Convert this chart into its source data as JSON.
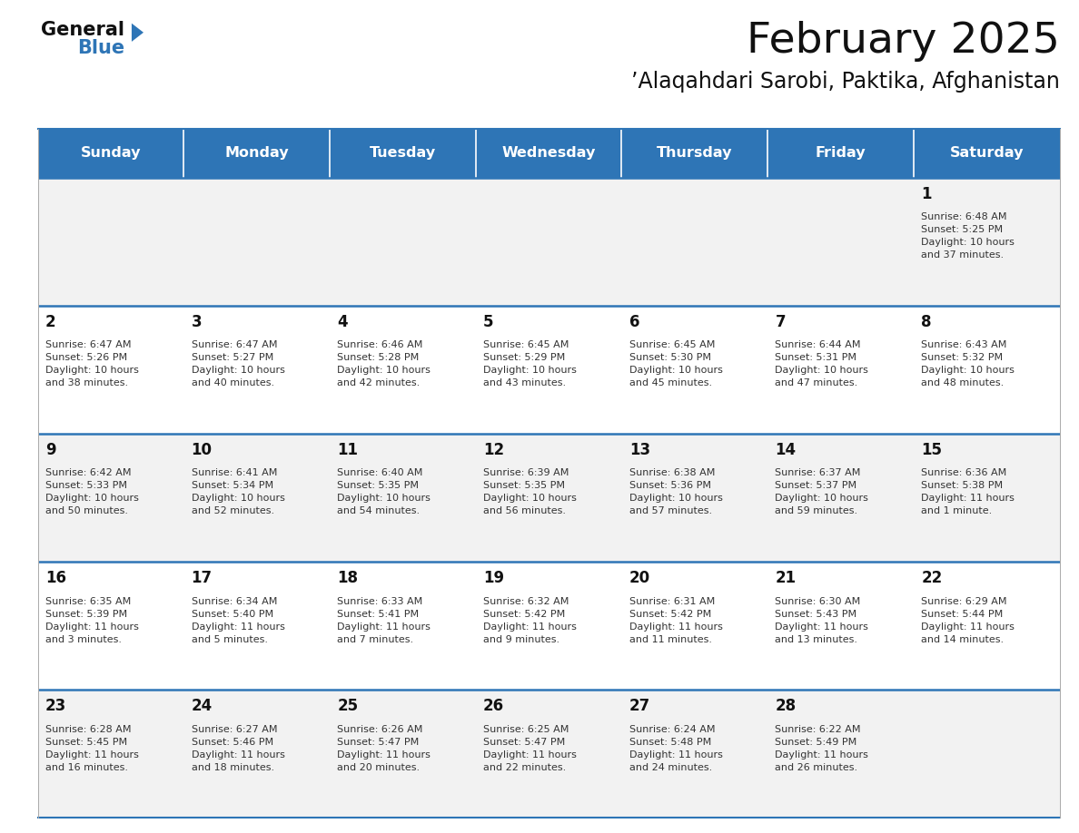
{
  "title": "February 2025",
  "subtitle": "’Alaqahdari Sarobi, Paktika, Afghanistan",
  "days_of_week": [
    "Sunday",
    "Monday",
    "Tuesday",
    "Wednesday",
    "Thursday",
    "Friday",
    "Saturday"
  ],
  "header_bg": "#2E75B6",
  "header_text": "#FFFFFF",
  "cell_bg_odd": "#F2F2F2",
  "cell_bg_even": "#FFFFFF",
  "text_color": "#333333",
  "line_color": "#2E75B6",
  "calendar_data": [
    [
      {
        "day": null,
        "info": null
      },
      {
        "day": null,
        "info": null
      },
      {
        "day": null,
        "info": null
      },
      {
        "day": null,
        "info": null
      },
      {
        "day": null,
        "info": null
      },
      {
        "day": null,
        "info": null
      },
      {
        "day": 1,
        "info": "Sunrise: 6:48 AM\nSunset: 5:25 PM\nDaylight: 10 hours\nand 37 minutes."
      }
    ],
    [
      {
        "day": 2,
        "info": "Sunrise: 6:47 AM\nSunset: 5:26 PM\nDaylight: 10 hours\nand 38 minutes."
      },
      {
        "day": 3,
        "info": "Sunrise: 6:47 AM\nSunset: 5:27 PM\nDaylight: 10 hours\nand 40 minutes."
      },
      {
        "day": 4,
        "info": "Sunrise: 6:46 AM\nSunset: 5:28 PM\nDaylight: 10 hours\nand 42 minutes."
      },
      {
        "day": 5,
        "info": "Sunrise: 6:45 AM\nSunset: 5:29 PM\nDaylight: 10 hours\nand 43 minutes."
      },
      {
        "day": 6,
        "info": "Sunrise: 6:45 AM\nSunset: 5:30 PM\nDaylight: 10 hours\nand 45 minutes."
      },
      {
        "day": 7,
        "info": "Sunrise: 6:44 AM\nSunset: 5:31 PM\nDaylight: 10 hours\nand 47 minutes."
      },
      {
        "day": 8,
        "info": "Sunrise: 6:43 AM\nSunset: 5:32 PM\nDaylight: 10 hours\nand 48 minutes."
      }
    ],
    [
      {
        "day": 9,
        "info": "Sunrise: 6:42 AM\nSunset: 5:33 PM\nDaylight: 10 hours\nand 50 minutes."
      },
      {
        "day": 10,
        "info": "Sunrise: 6:41 AM\nSunset: 5:34 PM\nDaylight: 10 hours\nand 52 minutes."
      },
      {
        "day": 11,
        "info": "Sunrise: 6:40 AM\nSunset: 5:35 PM\nDaylight: 10 hours\nand 54 minutes."
      },
      {
        "day": 12,
        "info": "Sunrise: 6:39 AM\nSunset: 5:35 PM\nDaylight: 10 hours\nand 56 minutes."
      },
      {
        "day": 13,
        "info": "Sunrise: 6:38 AM\nSunset: 5:36 PM\nDaylight: 10 hours\nand 57 minutes."
      },
      {
        "day": 14,
        "info": "Sunrise: 6:37 AM\nSunset: 5:37 PM\nDaylight: 10 hours\nand 59 minutes."
      },
      {
        "day": 15,
        "info": "Sunrise: 6:36 AM\nSunset: 5:38 PM\nDaylight: 11 hours\nand 1 minute."
      }
    ],
    [
      {
        "day": 16,
        "info": "Sunrise: 6:35 AM\nSunset: 5:39 PM\nDaylight: 11 hours\nand 3 minutes."
      },
      {
        "day": 17,
        "info": "Sunrise: 6:34 AM\nSunset: 5:40 PM\nDaylight: 11 hours\nand 5 minutes."
      },
      {
        "day": 18,
        "info": "Sunrise: 6:33 AM\nSunset: 5:41 PM\nDaylight: 11 hours\nand 7 minutes."
      },
      {
        "day": 19,
        "info": "Sunrise: 6:32 AM\nSunset: 5:42 PM\nDaylight: 11 hours\nand 9 minutes."
      },
      {
        "day": 20,
        "info": "Sunrise: 6:31 AM\nSunset: 5:42 PM\nDaylight: 11 hours\nand 11 minutes."
      },
      {
        "day": 21,
        "info": "Sunrise: 6:30 AM\nSunset: 5:43 PM\nDaylight: 11 hours\nand 13 minutes."
      },
      {
        "day": 22,
        "info": "Sunrise: 6:29 AM\nSunset: 5:44 PM\nDaylight: 11 hours\nand 14 minutes."
      }
    ],
    [
      {
        "day": 23,
        "info": "Sunrise: 6:28 AM\nSunset: 5:45 PM\nDaylight: 11 hours\nand 16 minutes."
      },
      {
        "day": 24,
        "info": "Sunrise: 6:27 AM\nSunset: 5:46 PM\nDaylight: 11 hours\nand 18 minutes."
      },
      {
        "day": 25,
        "info": "Sunrise: 6:26 AM\nSunset: 5:47 PM\nDaylight: 11 hours\nand 20 minutes."
      },
      {
        "day": 26,
        "info": "Sunrise: 6:25 AM\nSunset: 5:47 PM\nDaylight: 11 hours\nand 22 minutes."
      },
      {
        "day": 27,
        "info": "Sunrise: 6:24 AM\nSunset: 5:48 PM\nDaylight: 11 hours\nand 24 minutes."
      },
      {
        "day": 28,
        "info": "Sunrise: 6:22 AM\nSunset: 5:49 PM\nDaylight: 11 hours\nand 26 minutes."
      },
      {
        "day": null,
        "info": null
      }
    ]
  ],
  "logo_arrow_color": "#2E75B6",
  "fig_width": 11.88,
  "fig_height": 9.18,
  "dpi": 100
}
